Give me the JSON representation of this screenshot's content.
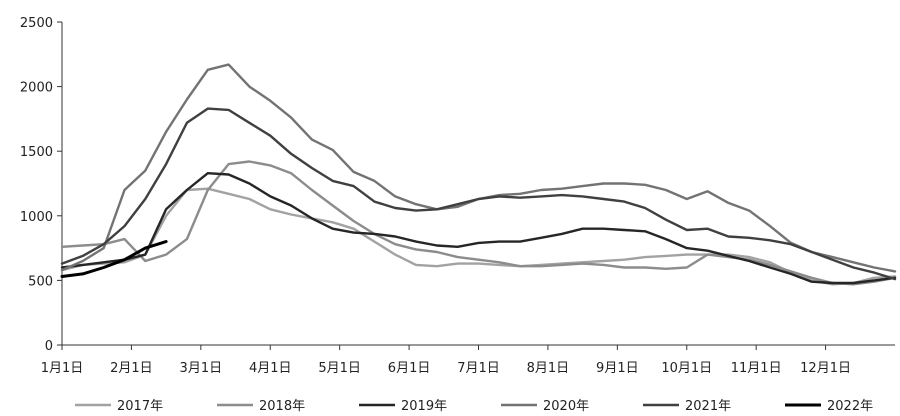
{
  "chart_data": {
    "type": "line",
    "title": "",
    "xlabel": "",
    "ylabel": "",
    "ylim": [
      0,
      2500
    ],
    "yticks": [
      0,
      500,
      1000,
      1500,
      2000,
      2500
    ],
    "x_tick_labels": [
      "1月1日",
      "2月1日",
      "3月1日",
      "4月1日",
      "5月1日",
      "6月1日",
      "7月1日",
      "8月1日",
      "9月1日",
      "10月1日",
      "11月1日",
      "12月1日"
    ],
    "legend_position": "bottom",
    "grid": false,
    "series": [
      {
        "name": "2017年",
        "color": "#a2a2a2",
        "points": [
          [
            0,
            580
          ],
          [
            0.3,
            620
          ],
          [
            0.6,
            630
          ],
          [
            0.9,
            640
          ],
          [
            1.2,
            700
          ],
          [
            1.5,
            1000
          ],
          [
            1.8,
            1200
          ],
          [
            2.1,
            1210
          ],
          [
            2.4,
            1170
          ],
          [
            2.7,
            1130
          ],
          [
            3.0,
            1050
          ],
          [
            3.3,
            1010
          ],
          [
            3.6,
            980
          ],
          [
            3.9,
            950
          ],
          [
            4.2,
            900
          ],
          [
            4.5,
            800
          ],
          [
            4.8,
            700
          ],
          [
            5.1,
            620
          ],
          [
            5.4,
            610
          ],
          [
            5.7,
            630
          ],
          [
            6.0,
            630
          ],
          [
            6.3,
            620
          ],
          [
            6.6,
            610
          ],
          [
            6.9,
            620
          ],
          [
            7.2,
            630
          ],
          [
            7.5,
            640
          ],
          [
            7.8,
            650
          ],
          [
            8.1,
            660
          ],
          [
            8.4,
            680
          ],
          [
            8.7,
            690
          ],
          [
            9.0,
            700
          ],
          [
            9.3,
            700
          ],
          [
            9.6,
            700
          ],
          [
            9.9,
            680
          ],
          [
            10.2,
            640
          ],
          [
            10.5,
            560
          ],
          [
            10.8,
            500
          ],
          [
            11.1,
            470
          ],
          [
            11.4,
            480
          ],
          [
            11.7,
            520
          ],
          [
            12.0,
            530
          ]
        ]
      },
      {
        "name": "2018年",
        "color": "#8c8c8c",
        "points": [
          [
            0,
            760
          ],
          [
            0.3,
            770
          ],
          [
            0.6,
            780
          ],
          [
            0.9,
            820
          ],
          [
            1.2,
            650
          ],
          [
            1.5,
            700
          ],
          [
            1.8,
            820
          ],
          [
            2.1,
            1200
          ],
          [
            2.4,
            1400
          ],
          [
            2.7,
            1420
          ],
          [
            3.0,
            1390
          ],
          [
            3.3,
            1330
          ],
          [
            3.6,
            1200
          ],
          [
            3.9,
            1080
          ],
          [
            4.2,
            960
          ],
          [
            4.5,
            860
          ],
          [
            4.8,
            780
          ],
          [
            5.1,
            740
          ],
          [
            5.4,
            720
          ],
          [
            5.7,
            680
          ],
          [
            6.0,
            660
          ],
          [
            6.3,
            640
          ],
          [
            6.6,
            610
          ],
          [
            6.9,
            610
          ],
          [
            7.2,
            620
          ],
          [
            7.5,
            630
          ],
          [
            7.8,
            620
          ],
          [
            8.1,
            600
          ],
          [
            8.4,
            600
          ],
          [
            8.7,
            590
          ],
          [
            9.0,
            600
          ],
          [
            9.3,
            700
          ],
          [
            9.6,
            680
          ],
          [
            9.9,
            660
          ],
          [
            10.2,
            620
          ],
          [
            10.5,
            570
          ],
          [
            10.8,
            520
          ],
          [
            11.1,
            480
          ],
          [
            11.4,
            470
          ],
          [
            11.7,
            490
          ],
          [
            12.0,
            520
          ]
        ]
      },
      {
        "name": "2019年",
        "color": "#262626",
        "points": [
          [
            0,
            600
          ],
          [
            0.3,
            620
          ],
          [
            0.6,
            640
          ],
          [
            0.9,
            660
          ],
          [
            1.2,
            700
          ],
          [
            1.5,
            1050
          ],
          [
            1.8,
            1200
          ],
          [
            2.1,
            1330
          ],
          [
            2.4,
            1320
          ],
          [
            2.7,
            1250
          ],
          [
            3.0,
            1150
          ],
          [
            3.3,
            1080
          ],
          [
            3.6,
            980
          ],
          [
            3.9,
            900
          ],
          [
            4.2,
            870
          ],
          [
            4.5,
            860
          ],
          [
            4.8,
            840
          ],
          [
            5.1,
            800
          ],
          [
            5.4,
            770
          ],
          [
            5.7,
            760
          ],
          [
            6.0,
            790
          ],
          [
            6.3,
            800
          ],
          [
            6.6,
            800
          ],
          [
            6.9,
            830
          ],
          [
            7.2,
            860
          ],
          [
            7.5,
            900
          ],
          [
            7.8,
            900
          ],
          [
            8.1,
            890
          ],
          [
            8.4,
            880
          ],
          [
            8.7,
            820
          ],
          [
            9.0,
            750
          ],
          [
            9.3,
            730
          ],
          [
            9.6,
            690
          ],
          [
            9.9,
            650
          ],
          [
            10.2,
            600
          ],
          [
            10.5,
            550
          ],
          [
            10.8,
            490
          ],
          [
            11.1,
            480
          ],
          [
            11.4,
            480
          ],
          [
            11.7,
            500
          ],
          [
            12.0,
            520
          ]
        ]
      },
      {
        "name": "2020年",
        "color": "#737373",
        "points": [
          [
            0,
            580
          ],
          [
            0.3,
            650
          ],
          [
            0.6,
            750
          ],
          [
            0.9,
            1200
          ],
          [
            1.2,
            1350
          ],
          [
            1.5,
            1650
          ],
          [
            1.8,
            1900
          ],
          [
            2.1,
            2130
          ],
          [
            2.4,
            2170
          ],
          [
            2.7,
            2000
          ],
          [
            3.0,
            1890
          ],
          [
            3.3,
            1760
          ],
          [
            3.6,
            1590
          ],
          [
            3.9,
            1510
          ],
          [
            4.2,
            1340
          ],
          [
            4.5,
            1270
          ],
          [
            4.8,
            1150
          ],
          [
            5.1,
            1090
          ],
          [
            5.4,
            1050
          ],
          [
            5.7,
            1070
          ],
          [
            6.0,
            1130
          ],
          [
            6.3,
            1160
          ],
          [
            6.6,
            1170
          ],
          [
            6.9,
            1200
          ],
          [
            7.2,
            1210
          ],
          [
            7.5,
            1230
          ],
          [
            7.8,
            1250
          ],
          [
            8.1,
            1250
          ],
          [
            8.4,
            1240
          ],
          [
            8.7,
            1200
          ],
          [
            9.0,
            1130
          ],
          [
            9.3,
            1190
          ],
          [
            9.6,
            1100
          ],
          [
            9.9,
            1040
          ],
          [
            10.2,
            920
          ],
          [
            10.5,
            790
          ],
          [
            10.8,
            720
          ],
          [
            11.1,
            680
          ],
          [
            11.4,
            640
          ],
          [
            11.7,
            600
          ],
          [
            12.0,
            570
          ]
        ]
      },
      {
        "name": "2021年",
        "color": "#404040",
        "points": [
          [
            0,
            630
          ],
          [
            0.3,
            690
          ],
          [
            0.6,
            780
          ],
          [
            0.9,
            920
          ],
          [
            1.2,
            1130
          ],
          [
            1.5,
            1400
          ],
          [
            1.8,
            1720
          ],
          [
            2.1,
            1830
          ],
          [
            2.4,
            1820
          ],
          [
            2.7,
            1720
          ],
          [
            3.0,
            1620
          ],
          [
            3.3,
            1480
          ],
          [
            3.6,
            1370
          ],
          [
            3.9,
            1270
          ],
          [
            4.2,
            1230
          ],
          [
            4.5,
            1110
          ],
          [
            4.8,
            1060
          ],
          [
            5.1,
            1040
          ],
          [
            5.4,
            1050
          ],
          [
            5.7,
            1090
          ],
          [
            6.0,
            1130
          ],
          [
            6.3,
            1150
          ],
          [
            6.6,
            1140
          ],
          [
            6.9,
            1150
          ],
          [
            7.2,
            1160
          ],
          [
            7.5,
            1150
          ],
          [
            7.8,
            1130
          ],
          [
            8.1,
            1110
          ],
          [
            8.4,
            1060
          ],
          [
            8.7,
            970
          ],
          [
            9.0,
            890
          ],
          [
            9.3,
            900
          ],
          [
            9.6,
            840
          ],
          [
            9.9,
            830
          ],
          [
            10.2,
            810
          ],
          [
            10.5,
            780
          ],
          [
            10.8,
            720
          ],
          [
            11.1,
            660
          ],
          [
            11.4,
            600
          ],
          [
            11.7,
            560
          ],
          [
            12.0,
            510
          ]
        ]
      },
      {
        "name": "2022年",
        "color": "#000000",
        "points": [
          [
            0,
            530
          ],
          [
            0.3,
            550
          ],
          [
            0.6,
            600
          ],
          [
            0.9,
            660
          ],
          [
            1.2,
            750
          ],
          [
            1.5,
            800
          ]
        ]
      }
    ]
  }
}
